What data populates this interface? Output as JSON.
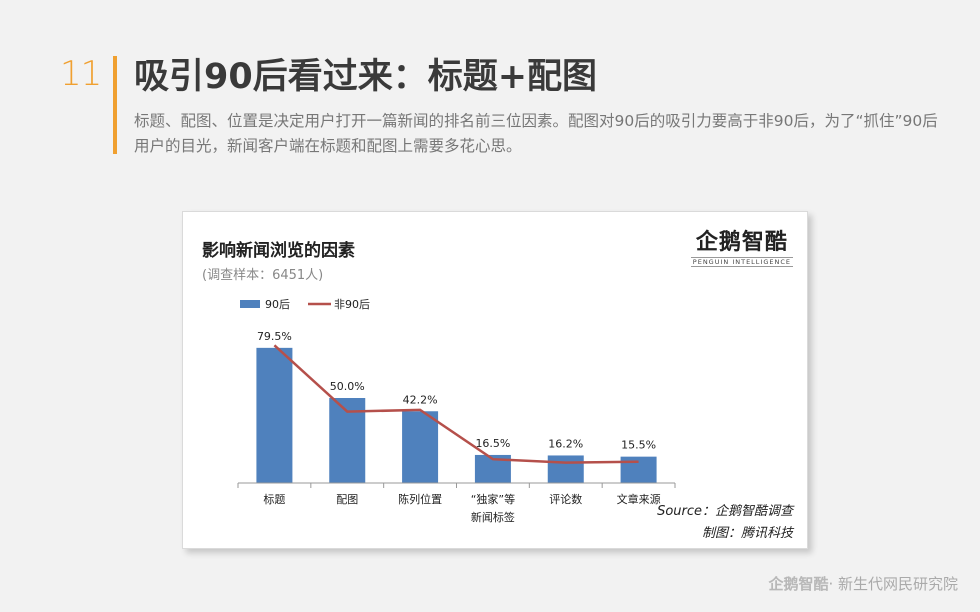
{
  "page": {
    "number": "11",
    "title": "吸引90后看过来：标题+配图",
    "description": "标题、配图、位置是决定用户打开一篇新闻的排名前三位因素。配图对90后的吸引力要高于非90后，为了“抓住”90后用户的目光，新闻客户端在标题和配图上需要多花心思。"
  },
  "card": {
    "logo_main": "企鹅智酷",
    "logo_sub": "PENGUIN INTELLIGENCE",
    "source": "Source：企鹅智酷调查",
    "credit": "制图：腾讯科技"
  },
  "footer": {
    "logo": "企鹅智酷",
    "text": "· 新生代网民研究院"
  },
  "chart_data": {
    "type": "bar",
    "title": "影响新闻浏览的因素",
    "subtitle": "(调查样本：6451人)",
    "categories": [
      "标题",
      "配图",
      "陈列位置",
      "“独家”等新闻标签",
      "评论数",
      "文章来源"
    ],
    "category_lines": [
      [
        "标题"
      ],
      [
        "配图"
      ],
      [
        "陈列位置"
      ],
      [
        "“独家”等",
        "新闻标签"
      ],
      [
        "评论数"
      ],
      [
        "文章来源"
      ]
    ],
    "series": [
      {
        "name": "90后",
        "type": "bar",
        "values": [
          79.5,
          50.0,
          42.2,
          16.5,
          16.2,
          15.5
        ],
        "labels": [
          "79.5%",
          "50.0%",
          "42.2%",
          "16.5%",
          "16.2%",
          "15.5%"
        ],
        "color": "#4f81bd"
      },
      {
        "name": "非90后",
        "type": "line",
        "values": [
          81,
          42,
          43,
          14,
          12,
          12.5
        ],
        "color": "#b5504b"
      }
    ],
    "ylim": [
      0,
      100
    ],
    "legend": "top-left",
    "grid": false
  }
}
